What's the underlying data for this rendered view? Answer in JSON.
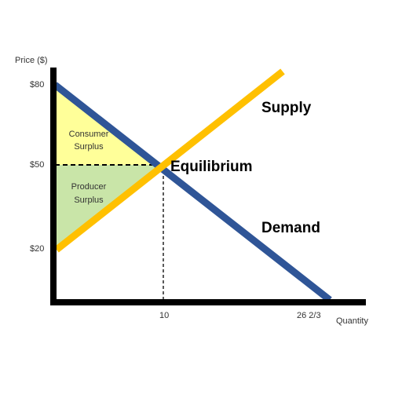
{
  "axes": {
    "y_label": "Price ($)",
    "x_label": "Quantity",
    "y_ticks": [
      "$80",
      "$50",
      "$20"
    ],
    "x_ticks": [
      "10",
      "26 2/3"
    ]
  },
  "curves": {
    "supply_label": "Supply",
    "demand_label": "Demand",
    "equilibrium_label": "Equilibrium"
  },
  "areas": {
    "consumer_line1": "Consumer",
    "consumer_line2": "Surplus",
    "producer_line1": "Producer",
    "producer_line2": "Surplus"
  },
  "colors": {
    "supply": "#FFC000",
    "demand": "#2F5597",
    "consumer_surplus": "#FFFF99",
    "producer_surplus": "#C9E5A8",
    "axis": "#000000"
  }
}
